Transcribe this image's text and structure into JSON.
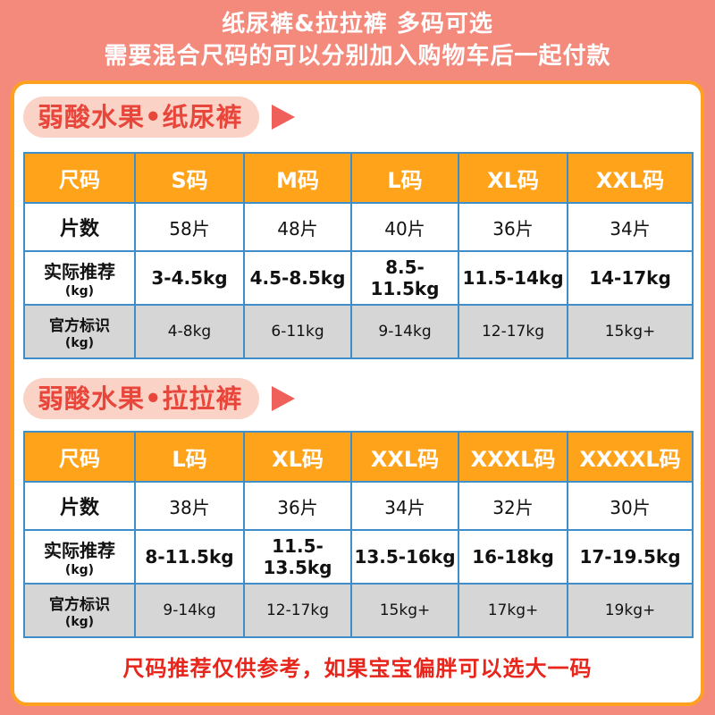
{
  "banner": {
    "line1": "纸尿裤&拉拉裤   多码可选",
    "line2": "需要混合尺码的可以分别加入购物车后一起付款"
  },
  "diapers": {
    "title": "弱酸水果•纸尿裤",
    "labels": {
      "size": "尺码",
      "count": "片数",
      "recommend": "实际推荐",
      "recommend_unit": "(kg)",
      "official": "官方标识",
      "official_unit": "(kg)"
    },
    "sizes": [
      "S码",
      "M码",
      "L码",
      "XL码",
      "XXL码"
    ],
    "counts": [
      "58片",
      "48片",
      "40片",
      "36片",
      "34片"
    ],
    "recommended": [
      "3-4.5kg",
      "4.5-8.5kg",
      "8.5-11.5kg",
      "11.5-14kg",
      "14-17kg"
    ],
    "official": [
      "4-8kg",
      "6-11kg",
      "9-14kg",
      "12-17kg",
      "15kg+"
    ]
  },
  "pullups": {
    "title": "弱酸水果•拉拉裤",
    "labels": {
      "size": "尺码",
      "count": "片数",
      "recommend": "实际推荐",
      "recommend_unit": "(kg)",
      "official": "官方标识",
      "official_unit": "(kg)"
    },
    "sizes": [
      "L码",
      "XL码",
      "XXL码",
      "XXXL码",
      "XXXXL码"
    ],
    "counts": [
      "38片",
      "36片",
      "34片",
      "32片",
      "30片"
    ],
    "recommended": [
      "8-11.5kg",
      "11.5-13.5kg",
      "13.5-16kg",
      "16-18kg",
      "17-19.5kg"
    ],
    "official": [
      "9-14kg",
      "12-17kg",
      "15kg+",
      "17kg+",
      "19kg+"
    ]
  },
  "footnote": "尺码推荐仅供参考，如果宝宝偏胖可以选大一码"
}
